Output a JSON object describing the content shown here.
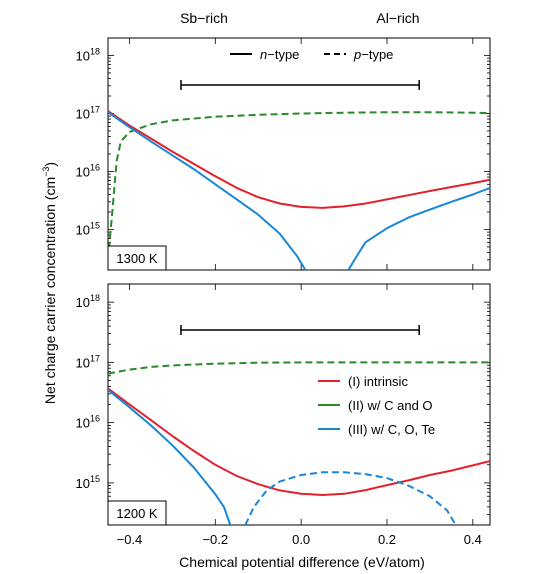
{
  "chart_data": {
    "type": "line",
    "top_labels": {
      "left": "Sb−rich",
      "right": "Al−rich"
    },
    "ylabel": {
      "text": "Net charge carrier concentration (cm",
      "exp": "−3",
      "close": ")"
    },
    "xlabel": "Chemical potential difference (eV/atom)",
    "xlim": [
      -0.45,
      0.44
    ],
    "x_ticks": [
      {
        "v": -0.4,
        "label": "−0.4"
      },
      {
        "v": -0.2,
        "label": "−0.2"
      },
      {
        "v": 0.0,
        "label": "0.0"
      },
      {
        "v": 0.2,
        "label": "0.2"
      },
      {
        "v": 0.4,
        "label": "0.4"
      }
    ],
    "y_scale": "log",
    "y_ticks": [
      {
        "v": 1000000000000000.0,
        "base": "10",
        "exp": "15"
      },
      {
        "v": 1e+16,
        "base": "10",
        "exp": "16"
      },
      {
        "v": 1e+17,
        "base": "10",
        "exp": "17"
      },
      {
        "v": 1e+18,
        "base": "10",
        "exp": "18"
      }
    ],
    "style_legend": [
      {
        "italic": "n",
        "text": "−type",
        "dash": "solid"
      },
      {
        "italic": "p",
        "text": "−type",
        "dash": "dashed"
      }
    ],
    "legend": [
      {
        "text": "(I) intrinsic",
        "color": "#e3212b"
      },
      {
        "text": "(II) w/ C and O",
        "color": "#2a8a2a"
      },
      {
        "text": "(III) w/ C, O, Te",
        "color": "#1a86d6"
      }
    ],
    "panels": [
      {
        "label": "1300 K",
        "ylim": [
          200000000000000.0,
          2e+18
        ],
        "range_bar": [
          -0.28,
          0.275
        ],
        "series": [
          {
            "id": "intrinsic",
            "color": "#e3212b",
            "dash": "solid",
            "points": [
              [
                -0.45,
                1.1e+17
              ],
              [
                -0.4,
                6.2e+16
              ],
              [
                -0.35,
                3.7e+16
              ],
              [
                -0.3,
                2.2e+16
              ],
              [
                -0.25,
                1.35e+16
              ],
              [
                -0.2,
                8300000000000000.0
              ],
              [
                -0.15,
                5200000000000000.0
              ],
              [
                -0.1,
                3600000000000000.0
              ],
              [
                -0.05,
                2800000000000000.0
              ],
              [
                0.0,
                2450000000000000.0
              ],
              [
                0.05,
                2350000000000000.0
              ],
              [
                0.1,
                2500000000000000.0
              ],
              [
                0.15,
                2800000000000000.0
              ],
              [
                0.2,
                3300000000000000.0
              ],
              [
                0.25,
                3900000000000000.0
              ],
              [
                0.3,
                4600000000000000.0
              ],
              [
                0.35,
                5400000000000000.0
              ],
              [
                0.4,
                6300000000000000.0
              ],
              [
                0.44,
                7200000000000000.0
              ]
            ]
          },
          {
            "id": "with-c-o",
            "color": "#2a8a2a",
            "dash": "dashed",
            "points": [
              [
                -0.45,
                300000000000000.0
              ],
              [
                -0.44,
                2000000000000000.0
              ],
              [
                -0.43,
                1.5e+16
              ],
              [
                -0.42,
                3.3e+16
              ],
              [
                -0.4,
                4.8e+16
              ],
              [
                -0.35,
                6.5e+16
              ],
              [
                -0.3,
                7.6e+16
              ],
              [
                -0.2,
                8.8e+16
              ],
              [
                -0.1,
                9.5e+16
              ],
              [
                0.0,
                1e+17
              ],
              [
                0.1,
                1.03e+17
              ],
              [
                0.2,
                1.05e+17
              ],
              [
                0.3,
                1.05e+17
              ],
              [
                0.4,
                1.03e+17
              ],
              [
                0.44,
                1.02e+17
              ]
            ]
          },
          {
            "id": "with-c-o-te-left",
            "color": "#1a86d6",
            "dash": "solid",
            "points": [
              [
                -0.45,
                1.05e+17
              ],
              [
                -0.4,
                5.8e+16
              ],
              [
                -0.35,
                3.3e+16
              ],
              [
                -0.3,
                1.9e+16
              ],
              [
                -0.25,
                1.1e+16
              ],
              [
                -0.2,
                6000000000000000.0
              ],
              [
                -0.15,
                3300000000000000.0
              ],
              [
                -0.1,
                1800000000000000.0
              ],
              [
                -0.05,
                850000000000000.0
              ],
              [
                -0.01,
                350000000000000.0
              ],
              [
                0.01,
                200000000000000.0
              ]
            ]
          },
          {
            "id": "with-c-o-te-right",
            "color": "#1a86d6",
            "dash": "solid",
            "points": [
              [
                0.11,
                200000000000000.0
              ],
              [
                0.13,
                350000000000000.0
              ],
              [
                0.15,
                600000000000000.0
              ],
              [
                0.2,
                1050000000000000.0
              ],
              [
                0.25,
                1600000000000000.0
              ],
              [
                0.3,
                2200000000000000.0
              ],
              [
                0.35,
                3000000000000000.0
              ],
              [
                0.4,
                4000000000000000.0
              ],
              [
                0.44,
                5200000000000000.0
              ]
            ]
          }
        ]
      },
      {
        "label": "1200 K",
        "ylim": [
          200000000000000.0,
          2e+18
        ],
        "range_bar": [
          -0.28,
          0.275
        ],
        "series": [
          {
            "id": "intrinsic",
            "color": "#e3212b",
            "dash": "solid",
            "points": [
              [
                -0.45,
                3.7e+16
              ],
              [
                -0.4,
                2e+16
              ],
              [
                -0.35,
                1.1e+16
              ],
              [
                -0.3,
                6000000000000000.0
              ],
              [
                -0.25,
                3400000000000000.0
              ],
              [
                -0.2,
                2000000000000000.0
              ],
              [
                -0.15,
                1300000000000000.0
              ],
              [
                -0.1,
                950000000000000.0
              ],
              [
                -0.05,
                750000000000000.0
              ],
              [
                0.0,
                660000000000000.0
              ],
              [
                0.05,
                630000000000000.0
              ],
              [
                0.1,
                660000000000000.0
              ],
              [
                0.15,
                760000000000000.0
              ],
              [
                0.2,
                920000000000000.0
              ],
              [
                0.25,
                1100000000000000.0
              ],
              [
                0.3,
                1350000000000000.0
              ],
              [
                0.35,
                1600000000000000.0
              ],
              [
                0.4,
                1950000000000000.0
              ],
              [
                0.44,
                2300000000000000.0
              ]
            ]
          },
          {
            "id": "with-c-o",
            "color": "#2a8a2a",
            "dash": "dashed",
            "points": [
              [
                -0.45,
                6.5e+16
              ],
              [
                -0.4,
                7.6e+16
              ],
              [
                -0.35,
                8.4e+16
              ],
              [
                -0.3,
                8.9e+16
              ],
              [
                -0.2,
                9.5e+16
              ],
              [
                -0.1,
                9.9e+16
              ],
              [
                0.0,
                1e+17
              ],
              [
                0.1,
                1e+17
              ],
              [
                0.2,
                1e+17
              ],
              [
                0.3,
                1e+17
              ],
              [
                0.4,
                1e+17
              ],
              [
                0.44,
                1e+17
              ]
            ]
          },
          {
            "id": "with-c-o-te-n",
            "color": "#1a86d6",
            "dash": "solid",
            "points": [
              [
                -0.45,
                3.5e+16
              ],
              [
                -0.4,
                1.8e+16
              ],
              [
                -0.35,
                9000000000000000.0
              ],
              [
                -0.3,
                4200000000000000.0
              ],
              [
                -0.25,
                1800000000000000.0
              ],
              [
                -0.2,
                650000000000000.0
              ],
              [
                -0.18,
                400000000000000.0
              ],
              [
                -0.165,
                200000000000000.0
              ]
            ]
          },
          {
            "id": "with-c-o-te-p",
            "color": "#1a86d6",
            "dash": "dashed",
            "points": [
              [
                -0.13,
                200000000000000.0
              ],
              [
                -0.11,
                400000000000000.0
              ],
              [
                -0.08,
                750000000000000.0
              ],
              [
                -0.05,
                1050000000000000.0
              ],
              [
                0.0,
                1350000000000000.0
              ],
              [
                0.05,
                1500000000000000.0
              ],
              [
                0.1,
                1500000000000000.0
              ],
              [
                0.15,
                1400000000000000.0
              ],
              [
                0.2,
                1200000000000000.0
              ],
              [
                0.25,
                900000000000000.0
              ],
              [
                0.3,
                600000000000000.0
              ],
              [
                0.34,
                350000000000000.0
              ],
              [
                0.36,
                200000000000000.0
              ]
            ]
          }
        ]
      }
    ]
  }
}
